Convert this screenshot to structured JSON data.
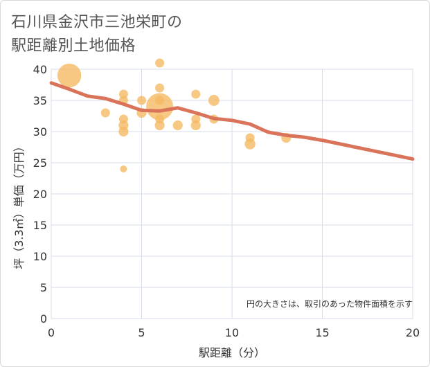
{
  "title_lines": [
    "石川県金沢市三池栄町の",
    "駅距離別土地価格"
  ],
  "colors": {
    "bubble": "#f5b961",
    "trend": "#d9735a",
    "grid": "#d6dde8",
    "text": "#333333"
  },
  "chart_data": {
    "type": "scatter",
    "title": "石川県金沢市三池栄町の駅距離別土地価格",
    "xlabel": "駅距離（分）",
    "ylabel": "坪（3.3㎡）単価（万円）",
    "xlim": [
      0,
      20
    ],
    "ylim": [
      0,
      40
    ],
    "xticks": [
      0,
      5,
      10,
      15,
      20
    ],
    "yticks": [
      0,
      5,
      10,
      15,
      20,
      25,
      30,
      35,
      40
    ],
    "grid": true,
    "note": "円の大きさは、取引のあった物件面積を示す",
    "points": [
      {
        "x": 1,
        "y": 39,
        "size": 7
      },
      {
        "x": 3,
        "y": 33,
        "size": 1
      },
      {
        "x": 4,
        "y": 36,
        "size": 1
      },
      {
        "x": 4,
        "y": 35,
        "size": 1
      },
      {
        "x": 4,
        "y": 32,
        "size": 1
      },
      {
        "x": 4,
        "y": 31,
        "size": 1.2
      },
      {
        "x": 4,
        "y": 30,
        "size": 1.2
      },
      {
        "x": 4,
        "y": 24,
        "size": 0.6
      },
      {
        "x": 5,
        "y": 35,
        "size": 1
      },
      {
        "x": 5,
        "y": 33,
        "size": 1.2
      },
      {
        "x": 6,
        "y": 41,
        "size": 1
      },
      {
        "x": 6,
        "y": 37,
        "size": 1
      },
      {
        "x": 6,
        "y": 35,
        "size": 1
      },
      {
        "x": 6,
        "y": 34,
        "size": 9
      },
      {
        "x": 6,
        "y": 32,
        "size": 1
      },
      {
        "x": 6,
        "y": 31,
        "size": 1.2
      },
      {
        "x": 7,
        "y": 31,
        "size": 1.2
      },
      {
        "x": 8,
        "y": 36,
        "size": 1
      },
      {
        "x": 8,
        "y": 32,
        "size": 1
      },
      {
        "x": 8,
        "y": 31,
        "size": 1.2
      },
      {
        "x": 9,
        "y": 35,
        "size": 1.5
      },
      {
        "x": 9,
        "y": 32,
        "size": 1
      },
      {
        "x": 11,
        "y": 29,
        "size": 1
      },
      {
        "x": 11,
        "y": 28,
        "size": 1.4
      },
      {
        "x": 13,
        "y": 29,
        "size": 1.2
      }
    ],
    "trend": {
      "x": [
        0,
        1,
        2,
        3,
        4,
        5,
        6,
        7,
        8,
        9,
        10,
        11,
        12,
        13,
        14,
        15,
        16,
        17,
        18,
        19,
        20
      ],
      "y": [
        37.8,
        36.8,
        35.7,
        35.3,
        34.4,
        33.4,
        33.3,
        33.8,
        33.0,
        32.1,
        31.8,
        31.2,
        29.9,
        29.4,
        29.1,
        28.6,
        28.0,
        27.4,
        26.8,
        26.2,
        25.6
      ]
    }
  }
}
